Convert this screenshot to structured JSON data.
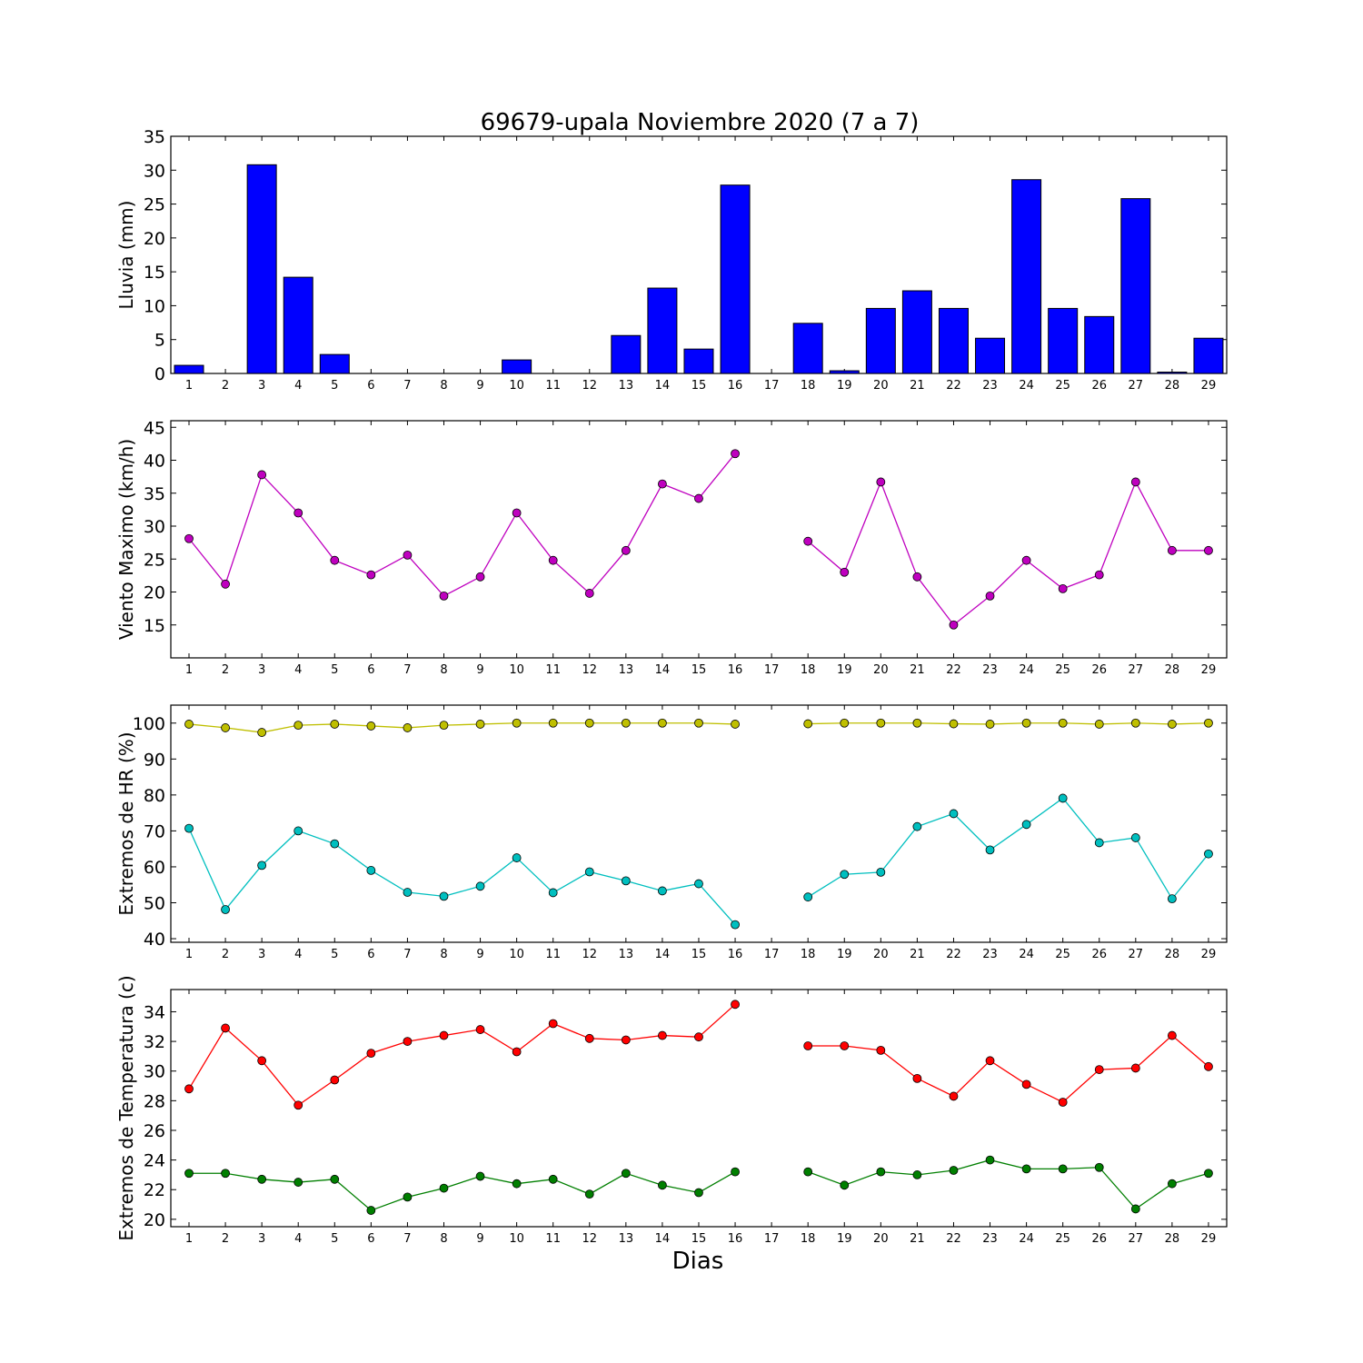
{
  "figure": {
    "title": "69679-upala Noviembre 2020  (7 a 7)",
    "xlabel": "Dias"
  },
  "chart_data": [
    {
      "type": "bar",
      "ylabel": "Lluvia (mm)",
      "ylim": [
        0,
        35
      ],
      "yticks": [
        0,
        5,
        10,
        15,
        20,
        25,
        30,
        35
      ],
      "categories": [
        "1",
        "2",
        "3",
        "4",
        "5",
        "6",
        "7",
        "8",
        "9",
        "10",
        "11",
        "12",
        "13",
        "14",
        "15",
        "16",
        "17",
        "18",
        "19",
        "20",
        "21",
        "22",
        "23",
        "24",
        "25",
        "26",
        "27",
        "28",
        "29"
      ],
      "values": [
        1.2,
        0.0,
        30.8,
        14.2,
        2.8,
        0.0,
        0.0,
        0.0,
        0.0,
        2.0,
        0.0,
        0.0,
        5.6,
        12.6,
        3.6,
        27.8,
        null,
        7.4,
        0.4,
        9.6,
        12.2,
        9.6,
        5.2,
        28.6,
        9.6,
        8.4,
        25.8,
        0.2,
        5.2
      ],
      "color": "#0000ff"
    },
    {
      "type": "line",
      "ylabel": "Viento Maximo (km/h)",
      "ylim": [
        10,
        46
      ],
      "yticks": [
        15,
        20,
        25,
        30,
        35,
        40,
        45
      ],
      "categories": [
        "1",
        "2",
        "3",
        "4",
        "5",
        "6",
        "7",
        "8",
        "9",
        "10",
        "11",
        "12",
        "13",
        "14",
        "15",
        "16",
        "17",
        "18",
        "19",
        "20",
        "21",
        "22",
        "23",
        "24",
        "25",
        "26",
        "27",
        "28",
        "29"
      ],
      "series": [
        {
          "values": [
            28.1,
            21.2,
            37.8,
            32.0,
            24.8,
            22.6,
            25.6,
            19.4,
            22.3,
            32.0,
            24.8,
            19.8,
            26.3,
            36.4,
            34.2,
            41.0,
            null,
            27.7,
            23.0,
            36.7,
            22.3,
            15.0,
            19.4,
            24.8,
            20.5,
            22.6,
            36.7,
            26.3,
            26.3
          ],
          "color": "#bf00bf"
        }
      ]
    },
    {
      "type": "line",
      "ylabel": "Extremos de HR (%)",
      "ylim": [
        39,
        105
      ],
      "yticks": [
        40,
        50,
        60,
        70,
        80,
        90,
        100
      ],
      "categories": [
        "1",
        "2",
        "3",
        "4",
        "5",
        "6",
        "7",
        "8",
        "9",
        "10",
        "11",
        "12",
        "13",
        "14",
        "15",
        "16",
        "17",
        "18",
        "19",
        "20",
        "21",
        "22",
        "23",
        "24",
        "25",
        "26",
        "27",
        "28",
        "29"
      ],
      "series": [
        {
          "values": [
            99.7,
            98.7,
            97.4,
            99.4,
            99.7,
            99.2,
            98.7,
            99.4,
            99.7,
            100,
            100,
            100,
            100,
            100,
            100,
            99.7,
            null,
            99.8,
            100,
            100,
            100,
            99.8,
            99.7,
            100,
            100,
            99.7,
            100,
            99.7,
            100
          ],
          "color": "#bfbf00"
        },
        {
          "values": [
            70.7,
            48.1,
            60.4,
            70.0,
            66.4,
            59.0,
            52.9,
            51.8,
            54.6,
            62.5,
            52.8,
            58.6,
            56.1,
            53.3,
            55.3,
            43.9,
            null,
            51.6,
            57.9,
            58.5,
            71.2,
            74.8,
            64.7,
            71.8,
            79.1,
            66.7,
            68.1,
            51.1,
            63.6
          ],
          "color": "#00bfbf"
        }
      ]
    },
    {
      "type": "line",
      "ylabel": "Extremos de Temperatura (c)",
      "ylim": [
        19.5,
        35.5
      ],
      "yticks": [
        20,
        22,
        24,
        26,
        28,
        30,
        32,
        34
      ],
      "categories": [
        "1",
        "2",
        "3",
        "4",
        "5",
        "6",
        "7",
        "8",
        "9",
        "10",
        "11",
        "12",
        "13",
        "14",
        "15",
        "16",
        "17",
        "18",
        "19",
        "20",
        "21",
        "22",
        "23",
        "24",
        "25",
        "26",
        "27",
        "28",
        "29"
      ],
      "series": [
        {
          "values": [
            28.8,
            32.9,
            30.7,
            27.7,
            29.4,
            31.2,
            32.0,
            32.4,
            32.8,
            31.3,
            33.2,
            32.2,
            32.1,
            32.4,
            32.3,
            34.5,
            null,
            31.7,
            31.7,
            31.4,
            29.5,
            28.3,
            30.7,
            29.1,
            27.9,
            30.1,
            30.2,
            32.4,
            30.3
          ],
          "color": "#ff0000"
        },
        {
          "values": [
            23.1,
            23.1,
            22.7,
            22.5,
            22.7,
            20.6,
            21.5,
            22.1,
            22.9,
            22.4,
            22.7,
            21.7,
            23.1,
            22.3,
            21.8,
            23.2,
            null,
            23.2,
            22.3,
            23.2,
            23.0,
            23.3,
            24.0,
            23.4,
            23.4,
            23.5,
            20.7,
            22.4,
            23.1
          ],
          "color": "#007f00"
        }
      ]
    }
  ]
}
